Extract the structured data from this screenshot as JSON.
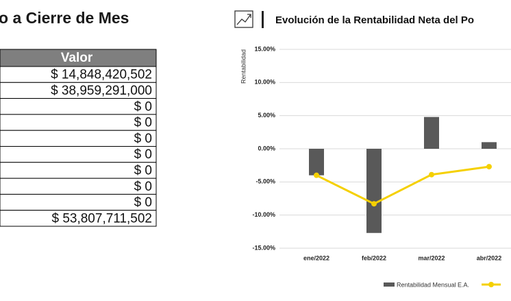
{
  "table_title": "o a Cierre de Mes",
  "table": {
    "header": "Valor",
    "rows": [
      "$ 14,848,420,502",
      "$ 38,959,291,000",
      "$ 0",
      "$ 0",
      "$ 0",
      "$ 0",
      "$ 0",
      "$ 0",
      "$ 0",
      "$ 53,807,711,502"
    ]
  },
  "chart_data": {
    "type": "bar",
    "title": "Evolución de la Rentabilidad Neta del Po",
    "y_label": "Rentabilidad",
    "categories": [
      "ene/2022",
      "feb/2022",
      "mar/2022",
      "abr/2022"
    ],
    "series": [
      {
        "name": "Rentabilidad Mensual E.A.",
        "type": "bar",
        "color": "#595959",
        "values": [
          -4.0,
          -12.7,
          4.8,
          1.0
        ]
      },
      {
        "type": "line",
        "color": "#f5d000",
        "values": [
          -4.0,
          -8.3,
          -3.9,
          -2.7
        ]
      }
    ],
    "ylim": [
      -15,
      15
    ],
    "yticks": [
      {
        "value": 15,
        "label": "15.00%"
      },
      {
        "value": 10,
        "label": "10.00%"
      },
      {
        "value": 5,
        "label": "5.00%"
      },
      {
        "value": 0,
        "label": "0.00%"
      },
      {
        "value": -5,
        "label": "-5.00%"
      },
      {
        "value": -10,
        "label": "-10.00%"
      },
      {
        "value": -15,
        "label": "-15.00%"
      }
    ],
    "grid": true
  }
}
